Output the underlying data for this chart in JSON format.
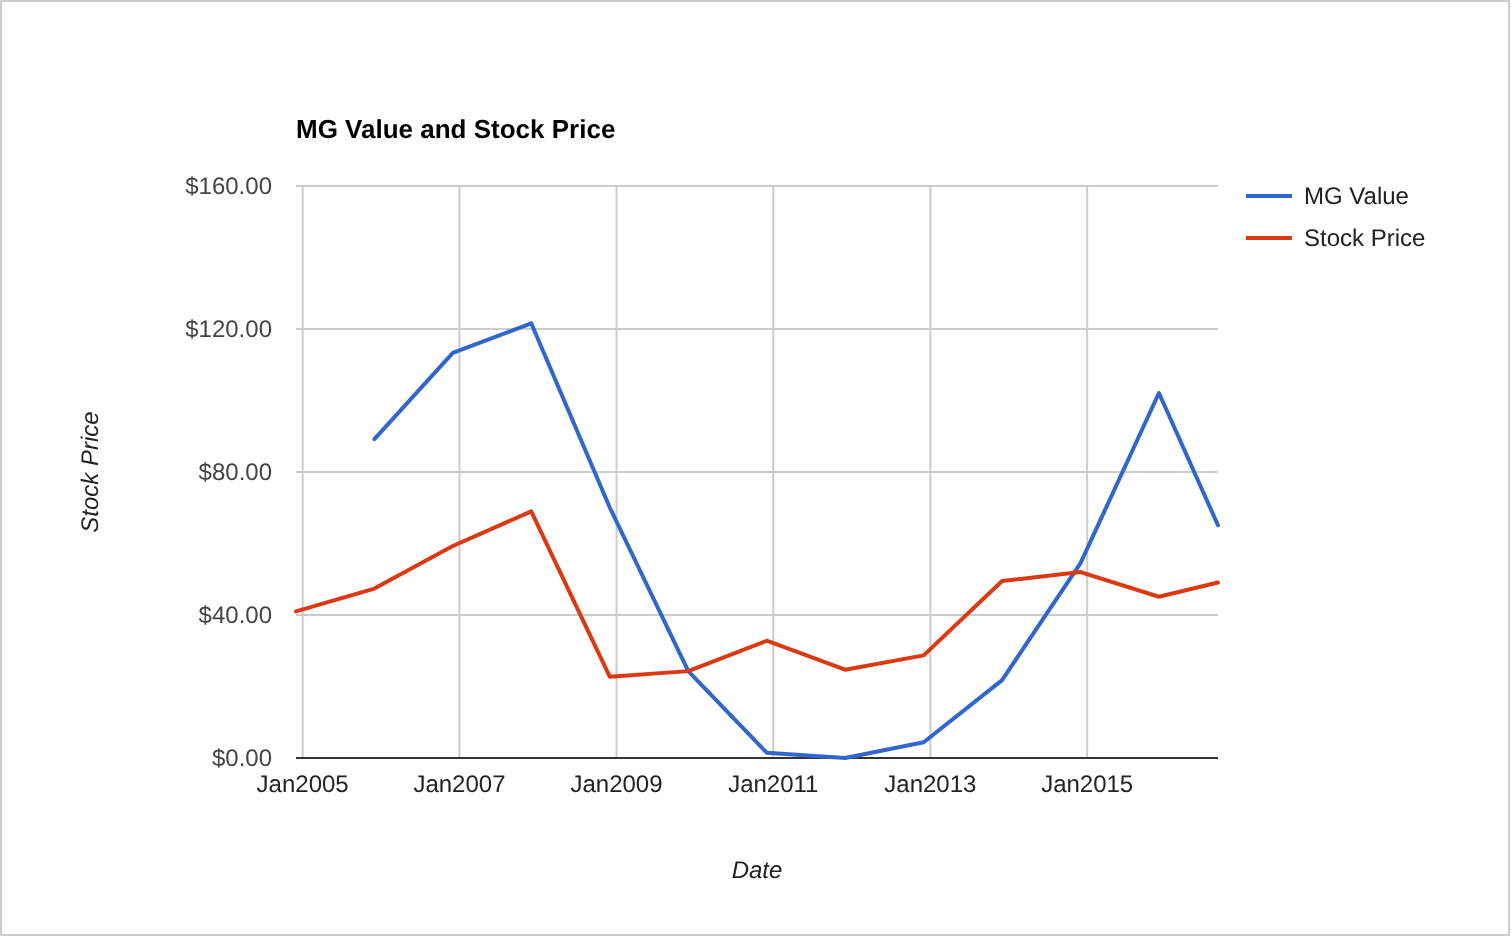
{
  "chart_data": {
    "type": "line",
    "title": "MG Value and Stock Price",
    "xlabel": "Date",
    "ylabel": "Stock Price",
    "x": [
      "2004-12",
      "2005-12",
      "2006-12",
      "2007-12",
      "2008-12",
      "2009-12",
      "2010-12",
      "2011-12",
      "2012-12",
      "2013-12",
      "2014-12",
      "2015-12",
      "2016-09"
    ],
    "series": [
      {
        "name": "MG Value",
        "color": "#3366cc",
        "values": [
          null,
          89.2,
          113.3,
          121.6,
          70,
          24.3,
          1.5,
          0,
          4.4,
          21.8,
          54.5,
          102.1,
          65.1
        ]
      },
      {
        "name": "Stock Price",
        "color": "#dc3912",
        "values": [
          41,
          47.4,
          59.3,
          69,
          22.7,
          24.3,
          32.8,
          24.7,
          28.7,
          49.5,
          52,
          45.1,
          49.1
        ]
      }
    ],
    "xlim": [
      "2004-12",
      "2016-09"
    ],
    "xticks": [
      {
        "value": "2005-01",
        "label": "Jan2005"
      },
      {
        "value": "2007-01",
        "label": "Jan2007"
      },
      {
        "value": "2009-01",
        "label": "Jan2009"
      },
      {
        "value": "2011-01",
        "label": "Jan2011"
      },
      {
        "value": "2013-01",
        "label": "Jan2013"
      },
      {
        "value": "2015-01",
        "label": "Jan2015"
      }
    ],
    "ylim": [
      0,
      160
    ],
    "yticks": [
      {
        "value": 0,
        "label": "$0.00"
      },
      {
        "value": 40,
        "label": "$40.00"
      },
      {
        "value": 80,
        "label": "$80.00"
      },
      {
        "value": 120,
        "label": "$120.00"
      },
      {
        "value": 160,
        "label": "$160.00"
      }
    ],
    "grid": true,
    "legend": "right",
    "marker": "none",
    "line_style": "solid"
  }
}
